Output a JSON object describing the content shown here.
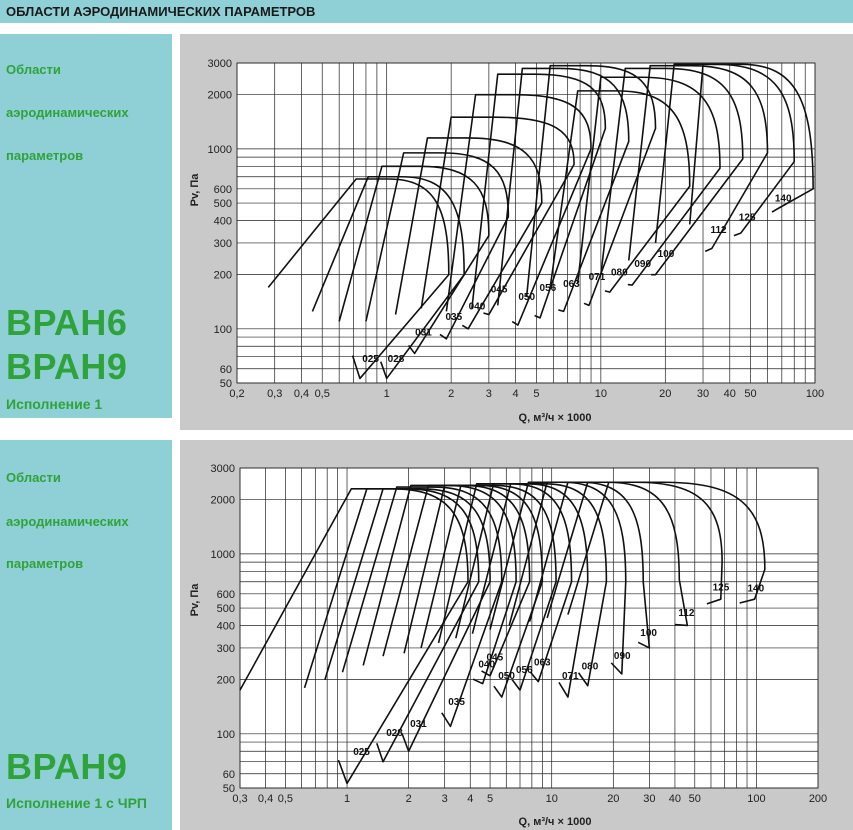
{
  "header": {
    "title": "ОБЛАСТИ АЭРОДИНАМИЧЕСКИХ ПАРАМЕТРОВ"
  },
  "panels": [
    {
      "lines": [
        "Области",
        "аэродинамических",
        "параметров"
      ],
      "series": [
        "ВРАН6",
        "ВРАН9"
      ],
      "variant": "Исполнение 1"
    },
    {
      "lines": [
        "Области",
        "аэродинамических",
        "параметров"
      ],
      "series": [
        "ВРАН9"
      ],
      "variant": "Исполнение 1 с ЧРП"
    }
  ],
  "colors": {
    "sidebar": "#8fd0d6",
    "accent_text": "#2fa33a",
    "plot_bg": "#c9c9c9"
  },
  "chart_data": [
    {
      "type": "line",
      "title": "",
      "xlabel": "Q, м³/ч × 1000",
      "ylabel": "Pv, Па",
      "x_scale": "log",
      "y_scale": "log",
      "xlim": [
        0.2,
        100
      ],
      "ylim": [
        50,
        3000
      ],
      "x_ticks": [
        0.2,
        0.3,
        0.4,
        0.5,
        1,
        2,
        3,
        4,
        5,
        10,
        20,
        30,
        40,
        50,
        100
      ],
      "x_tick_labels": [
        "0,2",
        "0,3",
        "0,4",
        "0,5",
        "1",
        "2",
        "3",
        "4",
        "5",
        "10",
        "20",
        "30",
        "40",
        "50",
        "100"
      ],
      "y_ticks": [
        50,
        60,
        100,
        200,
        300,
        400,
        500,
        600,
        1000,
        2000,
        3000
      ],
      "y_tick_labels": [
        "50",
        "60",
        "100",
        "200",
        "300",
        "400",
        "500",
        "600",
        "1000",
        "2000",
        "3000"
      ],
      "grid": true,
      "series": [
        {
          "name": "025",
          "x_low": 0.28,
          "y_low": 170,
          "x_top": 0.72,
          "y_top": 680,
          "x_right": 1.95,
          "y_right": 200,
          "x_bottom": 0.75,
          "y_bottom": 53
        },
        {
          "name": "028",
          "x_low": 0.45,
          "y_low": 125,
          "x_top": 0.82,
          "y_top": 700,
          "x_right": 2.3,
          "y_right": 200,
          "x_bottom": 1.0,
          "y_bottom": 53
        },
        {
          "name": "031",
          "x_low": 0.6,
          "y_low": 110,
          "x_top": 0.95,
          "y_top": 800,
          "x_right": 3.0,
          "y_right": 330,
          "x_bottom": 1.35,
          "y_bottom": 73
        },
        {
          "name": "035",
          "x_low": 0.8,
          "y_low": 110,
          "x_top": 1.2,
          "y_top": 950,
          "x_right": 3.7,
          "y_right": 420,
          "x_bottom": 1.9,
          "y_bottom": 88
        },
        {
          "name": "040",
          "x_low": 1.1,
          "y_low": 120,
          "x_top": 1.55,
          "y_top": 1150,
          "x_right": 5.3,
          "y_right": 500,
          "x_bottom": 2.4,
          "y_bottom": 100
        },
        {
          "name": "045",
          "x_low": 1.45,
          "y_low": 130,
          "x_top": 2.0,
          "y_top": 1500,
          "x_right": 7.5,
          "y_right": 820,
          "x_bottom": 3.0,
          "y_bottom": 120
        },
        {
          "name": "050",
          "x_low": 1.9,
          "y_low": 125,
          "x_top": 2.6,
          "y_top": 2000,
          "x_right": 9.0,
          "y_right": 1000,
          "x_bottom": 4.1,
          "y_bottom": 105
        },
        {
          "name": "056",
          "x_low": 2.5,
          "y_low": 130,
          "x_top": 3.3,
          "y_top": 2600,
          "x_right": 10.5,
          "y_right": 1300,
          "x_bottom": 5.2,
          "y_bottom": 115
        },
        {
          "name": "063",
          "x_low": 3.3,
          "y_low": 135,
          "x_top": 4.3,
          "y_top": 2800,
          "x_right": 13.5,
          "y_right": 1100,
          "x_bottom": 6.7,
          "y_bottom": 125
        },
        {
          "name": "071",
          "x_low": 4.5,
          "y_low": 150,
          "x_top": 5.8,
          "y_top": 2900,
          "x_right": 18.0,
          "y_right": 1300,
          "x_bottom": 8.8,
          "y_bottom": 135
        },
        {
          "name": "080",
          "x_low": 5.8,
          "y_low": 170,
          "x_top": 7.8,
          "y_top": 2100,
          "x_right": 26.0,
          "y_right": 620,
          "x_bottom": 11.0,
          "y_bottom": 160
        },
        {
          "name": "090",
          "x_low": 7.8,
          "y_low": 180,
          "x_top": 10.0,
          "y_top": 2500,
          "x_right": 36.0,
          "y_right": 780,
          "x_bottom": 14.0,
          "y_bottom": 175
        },
        {
          "name": "100",
          "x_low": 10.0,
          "y_low": 200,
          "x_top": 13.0,
          "y_top": 2800,
          "x_right": 46.0,
          "y_right": 880,
          "x_bottom": 18.0,
          "y_bottom": 200
        },
        {
          "name": "112",
          "x_low": 13.5,
          "y_low": 240,
          "x_top": 17.0,
          "y_top": 2900,
          "x_right": 60.0,
          "y_right": 950,
          "x_bottom": 33.0,
          "y_bottom": 280
        },
        {
          "name": "125",
          "x_low": 18.0,
          "y_low": 300,
          "x_top": 22.0,
          "y_top": 2950,
          "x_right": 80.0,
          "y_right": 850,
          "x_bottom": 45.0,
          "y_bottom": 340
        },
        {
          "name": "140",
          "x_low": 26.0,
          "y_low": 380,
          "x_top": 30.0,
          "y_top": 2950,
          "x_right": 98.0,
          "y_right": 600,
          "x_bottom": 68.0,
          "y_bottom": 470
        }
      ]
    },
    {
      "type": "line",
      "title": "",
      "xlabel": "Q, м³/ч × 1000",
      "ylabel": "Pv, Па",
      "x_scale": "log",
      "y_scale": "log",
      "xlim": [
        0.3,
        200
      ],
      "ylim": [
        50,
        3000
      ],
      "x_ticks": [
        0.3,
        0.4,
        0.5,
        1,
        2,
        3,
        4,
        5,
        10,
        20,
        30,
        40,
        50,
        100,
        200
      ],
      "x_tick_labels": [
        "0,3",
        "0,4",
        "0,5",
        "1",
        "2",
        "3",
        "4",
        "5",
        "10",
        "20",
        "30",
        "40",
        "50",
        "100",
        "200"
      ],
      "y_ticks": [
        50,
        60,
        100,
        200,
        300,
        400,
        500,
        600,
        1000,
        2000,
        3000
      ],
      "y_tick_labels": [
        "50",
        "60",
        "100",
        "200",
        "300",
        "400",
        "500",
        "600",
        "1000",
        "2000",
        "3000"
      ],
      "grid": true,
      "series": [
        {
          "name": "025",
          "x_low": 0.3,
          "y_low": 175,
          "x_top": 1.05,
          "y_top": 2300,
          "x_right": 3.9,
          "y_right": 700,
          "x_bottom": 1.0,
          "y_bottom": 53
        },
        {
          "name": "028",
          "x_low": 0.62,
          "y_low": 180,
          "x_top": 1.25,
          "y_top": 2300,
          "x_right": 4.4,
          "y_right": 700,
          "x_bottom": 1.5,
          "y_bottom": 70
        },
        {
          "name": "031",
          "x_low": 0.78,
          "y_low": 200,
          "x_top": 1.5,
          "y_top": 2300,
          "x_right": 5.0,
          "y_right": 700,
          "x_bottom": 2.0,
          "y_bottom": 80
        },
        {
          "name": "035",
          "x_low": 0.95,
          "y_low": 220,
          "x_top": 1.75,
          "y_top": 2350,
          "x_right": 5.7,
          "y_right": 700,
          "x_bottom": 3.2,
          "y_bottom": 110
        },
        {
          "name": "040",
          "x_low": 1.2,
          "y_low": 240,
          "x_top": 2.05,
          "y_top": 2400,
          "x_right": 6.7,
          "y_right": 700,
          "x_bottom": 4.6,
          "y_bottom": 190
        },
        {
          "name": "045",
          "x_low": 1.5,
          "y_low": 270,
          "x_top": 2.5,
          "y_top": 2400,
          "x_right": 7.8,
          "y_right": 700,
          "x_bottom": 5.0,
          "y_bottom": 210
        },
        {
          "name": "050",
          "x_low": 1.9,
          "y_low": 280,
          "x_top": 3.0,
          "y_top": 2400,
          "x_right": 9.0,
          "y_right": 700,
          "x_bottom": 5.7,
          "y_bottom": 160
        },
        {
          "name": "056",
          "x_low": 2.3,
          "y_low": 300,
          "x_top": 3.6,
          "y_top": 2400,
          "x_right": 10.5,
          "y_right": 700,
          "x_bottom": 7.0,
          "y_bottom": 175
        },
        {
          "name": "063",
          "x_low": 2.8,
          "y_low": 320,
          "x_top": 4.3,
          "y_top": 2450,
          "x_right": 12.5,
          "y_right": 700,
          "x_bottom": 8.6,
          "y_bottom": 195
        },
        {
          "name": "071",
          "x_low": 3.4,
          "y_low": 340,
          "x_top": 5.2,
          "y_top": 2450,
          "x_right": 15.0,
          "y_right": 700,
          "x_bottom": 12.0,
          "y_bottom": 160
        },
        {
          "name": "080",
          "x_low": 4.1,
          "y_low": 360,
          "x_top": 6.3,
          "y_top": 2450,
          "x_right": 18.5,
          "y_right": 700,
          "x_bottom": 15.0,
          "y_bottom": 185
        },
        {
          "name": "090",
          "x_low": 5.0,
          "y_low": 380,
          "x_top": 7.7,
          "y_top": 2500,
          "x_right": 23.0,
          "y_right": 700,
          "x_bottom": 22.0,
          "y_bottom": 215
        },
        {
          "name": "100",
          "x_low": 6.2,
          "y_low": 400,
          "x_top": 9.5,
          "y_top": 2500,
          "x_right": 28.0,
          "y_right": 700,
          "x_bottom": 30.0,
          "y_bottom": 300
        },
        {
          "name": "112",
          "x_low": 7.8,
          "y_low": 420,
          "x_top": 12.0,
          "y_top": 2500,
          "x_right": 42.0,
          "y_right": 720,
          "x_bottom": 46.0,
          "y_bottom": 400
        },
        {
          "name": "125",
          "x_low": 9.5,
          "y_low": 440,
          "x_top": 15.0,
          "y_top": 2500,
          "x_right": 68.0,
          "y_right": 900,
          "x_bottom": 67.0,
          "y_bottom": 560
        },
        {
          "name": "140",
          "x_low": 12.0,
          "y_low": 460,
          "x_top": 19.0,
          "y_top": 2500,
          "x_right": 110.0,
          "y_right": 820,
          "x_bottom": 98.0,
          "y_bottom": 560
        }
      ]
    }
  ]
}
